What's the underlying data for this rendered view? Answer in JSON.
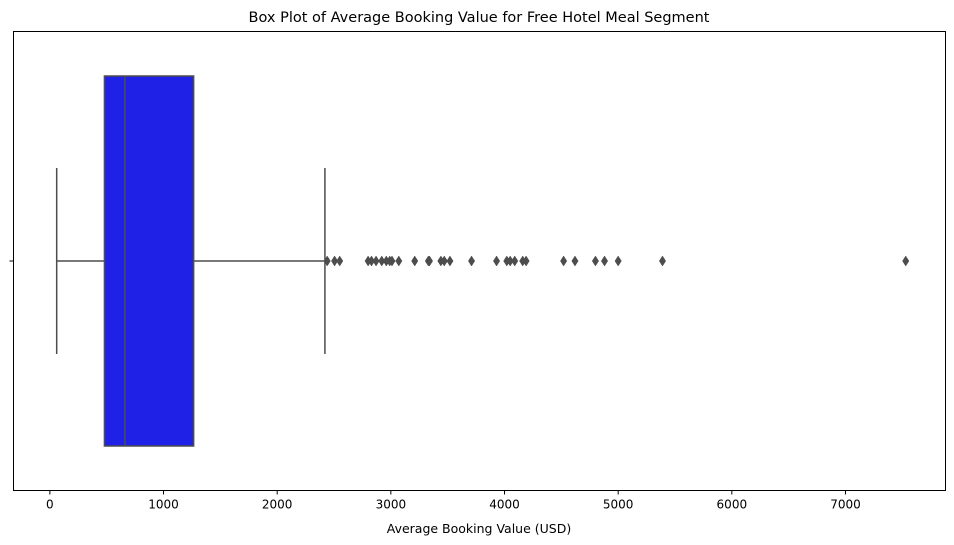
{
  "chart_data": {
    "type": "box",
    "title": "Box Plot of Average Booking Value for Free Hotel Meal Segment",
    "xlabel": "Average Booking Value (USD)",
    "ylabel": "",
    "xlim": [
      -320,
      7880
    ],
    "xticks": [
      0,
      1000,
      2000,
      3000,
      4000,
      5000,
      6000,
      7000
    ],
    "grid": false,
    "box": {
      "min_whisker": 60,
      "q1": 480,
      "median": 660,
      "q3": 1265,
      "max_whisker": 2420,
      "color": "#1f22e6",
      "edge_color": "#4d4d4d"
    },
    "outliers": [
      2440,
      2505,
      2550,
      2800,
      2830,
      2870,
      2920,
      2960,
      2990,
      3010,
      3070,
      3210,
      3330,
      3340,
      3440,
      3470,
      3520,
      3710,
      3930,
      4020,
      4050,
      4090,
      4160,
      4190,
      4520,
      4620,
      4800,
      4880,
      5000,
      5390,
      7530
    ]
  }
}
